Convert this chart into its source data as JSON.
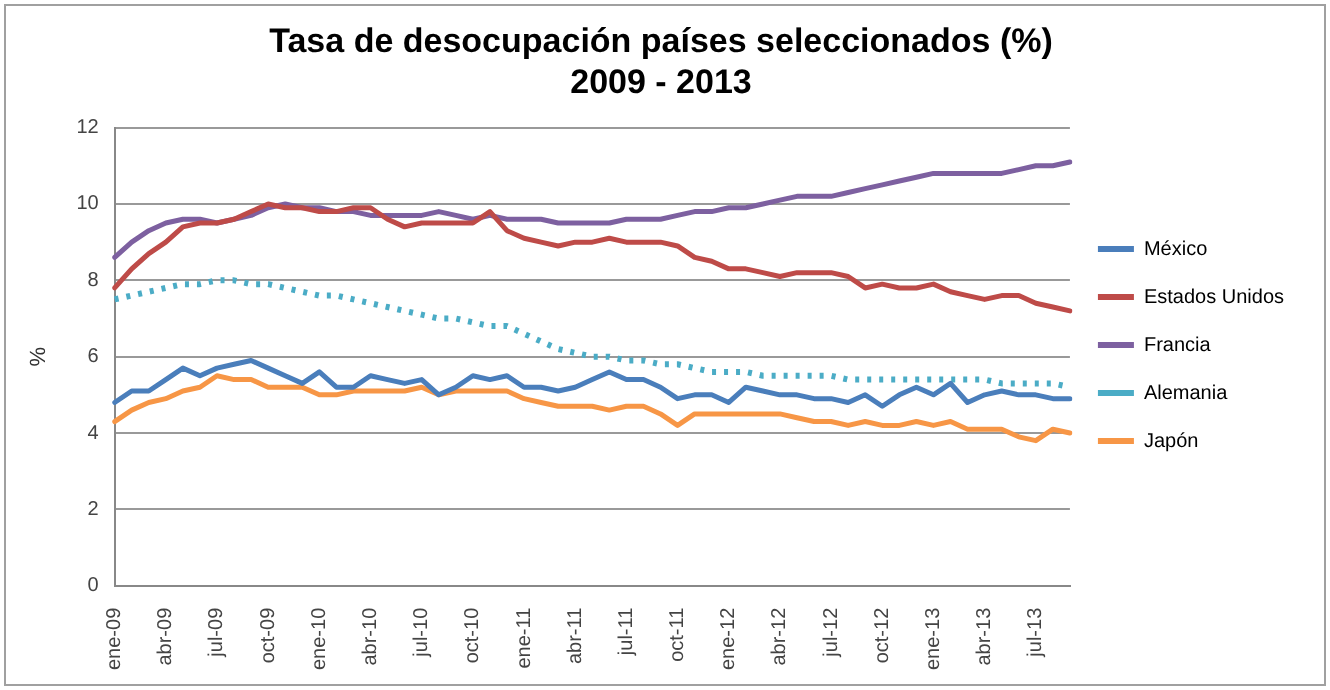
{
  "chart_data": {
    "type": "line",
    "title": "Tasa de desocupación países seleccionados (%)\n2009 - 2013",
    "ylabel": "%",
    "categories": [
      "ene-09",
      null,
      null,
      "abr-09",
      null,
      null,
      "jul-09",
      null,
      null,
      "oct-09",
      null,
      null,
      "ene-10",
      null,
      null,
      "abr-10",
      null,
      null,
      "jul-10",
      null,
      null,
      "oct-10",
      null,
      null,
      "ene-11",
      null,
      null,
      "abr-11",
      null,
      null,
      "jul-11",
      null,
      null,
      "oct-11",
      null,
      null,
      "ene-12",
      null,
      null,
      "abr-12",
      null,
      null,
      "jul-12",
      null,
      null,
      "oct-12",
      null,
      null,
      "ene-13",
      null,
      null,
      "abr-13",
      null,
      null,
      "jul-13",
      null,
      null
    ],
    "ylim": [
      0,
      12
    ],
    "yticks": [
      0,
      2,
      4,
      6,
      8,
      10,
      12
    ],
    "grid": "y",
    "legend": "right",
    "marker": "none",
    "line_style": "solid",
    "series": [
      {
        "name": "México",
        "color": "#4a7ebb",
        "values": [
          4.8,
          5.1,
          5.1,
          5.4,
          5.7,
          5.5,
          5.7,
          5.8,
          5.9,
          5.7,
          5.5,
          5.3,
          5.6,
          5.2,
          5.2,
          5.5,
          5.4,
          5.3,
          5.4,
          5.0,
          5.2,
          5.5,
          5.4,
          5.5,
          5.2,
          5.2,
          5.1,
          5.2,
          5.4,
          5.6,
          5.4,
          5.4,
          5.2,
          4.9,
          5.0,
          5.0,
          4.8,
          5.2,
          5.1,
          5.0,
          5.0,
          4.9,
          4.9,
          4.8,
          5.0,
          4.7,
          5.0,
          5.2,
          5.0,
          5.3,
          4.8,
          5.0,
          5.1,
          5.0,
          5.0,
          4.9,
          4.9
        ]
      },
      {
        "name": "Estados Unidos",
        "color": "#be4b48",
        "values": [
          7.8,
          8.3,
          8.7,
          9.0,
          9.4,
          9.5,
          9.5,
          9.6,
          9.8,
          10.0,
          9.9,
          9.9,
          9.8,
          9.8,
          9.9,
          9.9,
          9.6,
          9.4,
          9.5,
          9.5,
          9.5,
          9.5,
          9.8,
          9.3,
          9.1,
          9.0,
          8.9,
          9.0,
          9.0,
          9.1,
          9.0,
          9.0,
          9.0,
          8.9,
          8.6,
          8.5,
          8.3,
          8.3,
          8.2,
          8.1,
          8.2,
          8.2,
          8.2,
          8.1,
          7.8,
          7.9,
          7.8,
          7.8,
          7.9,
          7.7,
          7.6,
          7.5,
          7.6,
          7.6,
          7.4,
          7.3,
          7.2
        ]
      },
      {
        "name": "Francia",
        "color": "#7d60a0",
        "values": [
          8.6,
          9.0,
          9.3,
          9.5,
          9.6,
          9.6,
          9.5,
          9.6,
          9.7,
          9.9,
          10.0,
          9.9,
          9.9,
          9.8,
          9.8,
          9.7,
          9.7,
          9.7,
          9.7,
          9.8,
          9.7,
          9.6,
          9.7,
          9.6,
          9.6,
          9.6,
          9.5,
          9.5,
          9.5,
          9.5,
          9.6,
          9.6,
          9.6,
          9.7,
          9.8,
          9.8,
          9.9,
          9.9,
          10.0,
          10.1,
          10.2,
          10.2,
          10.2,
          10.3,
          10.4,
          10.5,
          10.6,
          10.7,
          10.8,
          10.8,
          10.8,
          10.8,
          10.8,
          10.9,
          11.0,
          11.0,
          11.1
        ]
      },
      {
        "name": "Alemania",
        "color": "#4bacc6",
        "line_style": "dotted",
        "values": [
          7.5,
          7.6,
          7.7,
          7.8,
          7.9,
          7.9,
          8.0,
          8.0,
          7.9,
          7.9,
          7.8,
          7.7,
          7.6,
          7.6,
          7.5,
          7.4,
          7.3,
          7.2,
          7.1,
          7.0,
          7.0,
          6.9,
          6.8,
          6.8,
          6.6,
          6.4,
          6.2,
          6.1,
          6.0,
          6.0,
          5.9,
          5.9,
          5.8,
          5.8,
          5.7,
          5.6,
          5.6,
          5.6,
          5.5,
          5.5,
          5.5,
          5.5,
          5.5,
          5.4,
          5.4,
          5.4,
          5.4,
          5.4,
          5.4,
          5.4,
          5.4,
          5.4,
          5.3,
          5.3,
          5.3,
          5.3,
          5.2
        ]
      },
      {
        "name": "Japón",
        "color": "#f79646",
        "values": [
          4.3,
          4.6,
          4.8,
          4.9,
          5.1,
          5.2,
          5.5,
          5.4,
          5.4,
          5.2,
          5.2,
          5.2,
          5.0,
          5.0,
          5.1,
          5.1,
          5.1,
          5.1,
          5.2,
          5.0,
          5.1,
          5.1,
          5.1,
          5.1,
          4.9,
          4.8,
          4.7,
          4.7,
          4.7,
          4.6,
          4.7,
          4.7,
          4.5,
          4.2,
          4.5,
          4.5,
          4.5,
          4.5,
          4.5,
          4.5,
          4.4,
          4.3,
          4.3,
          4.2,
          4.3,
          4.2,
          4.2,
          4.3,
          4.2,
          4.3,
          4.1,
          4.1,
          4.1,
          3.9,
          3.8,
          4.1,
          4.0
        ]
      }
    ]
  }
}
